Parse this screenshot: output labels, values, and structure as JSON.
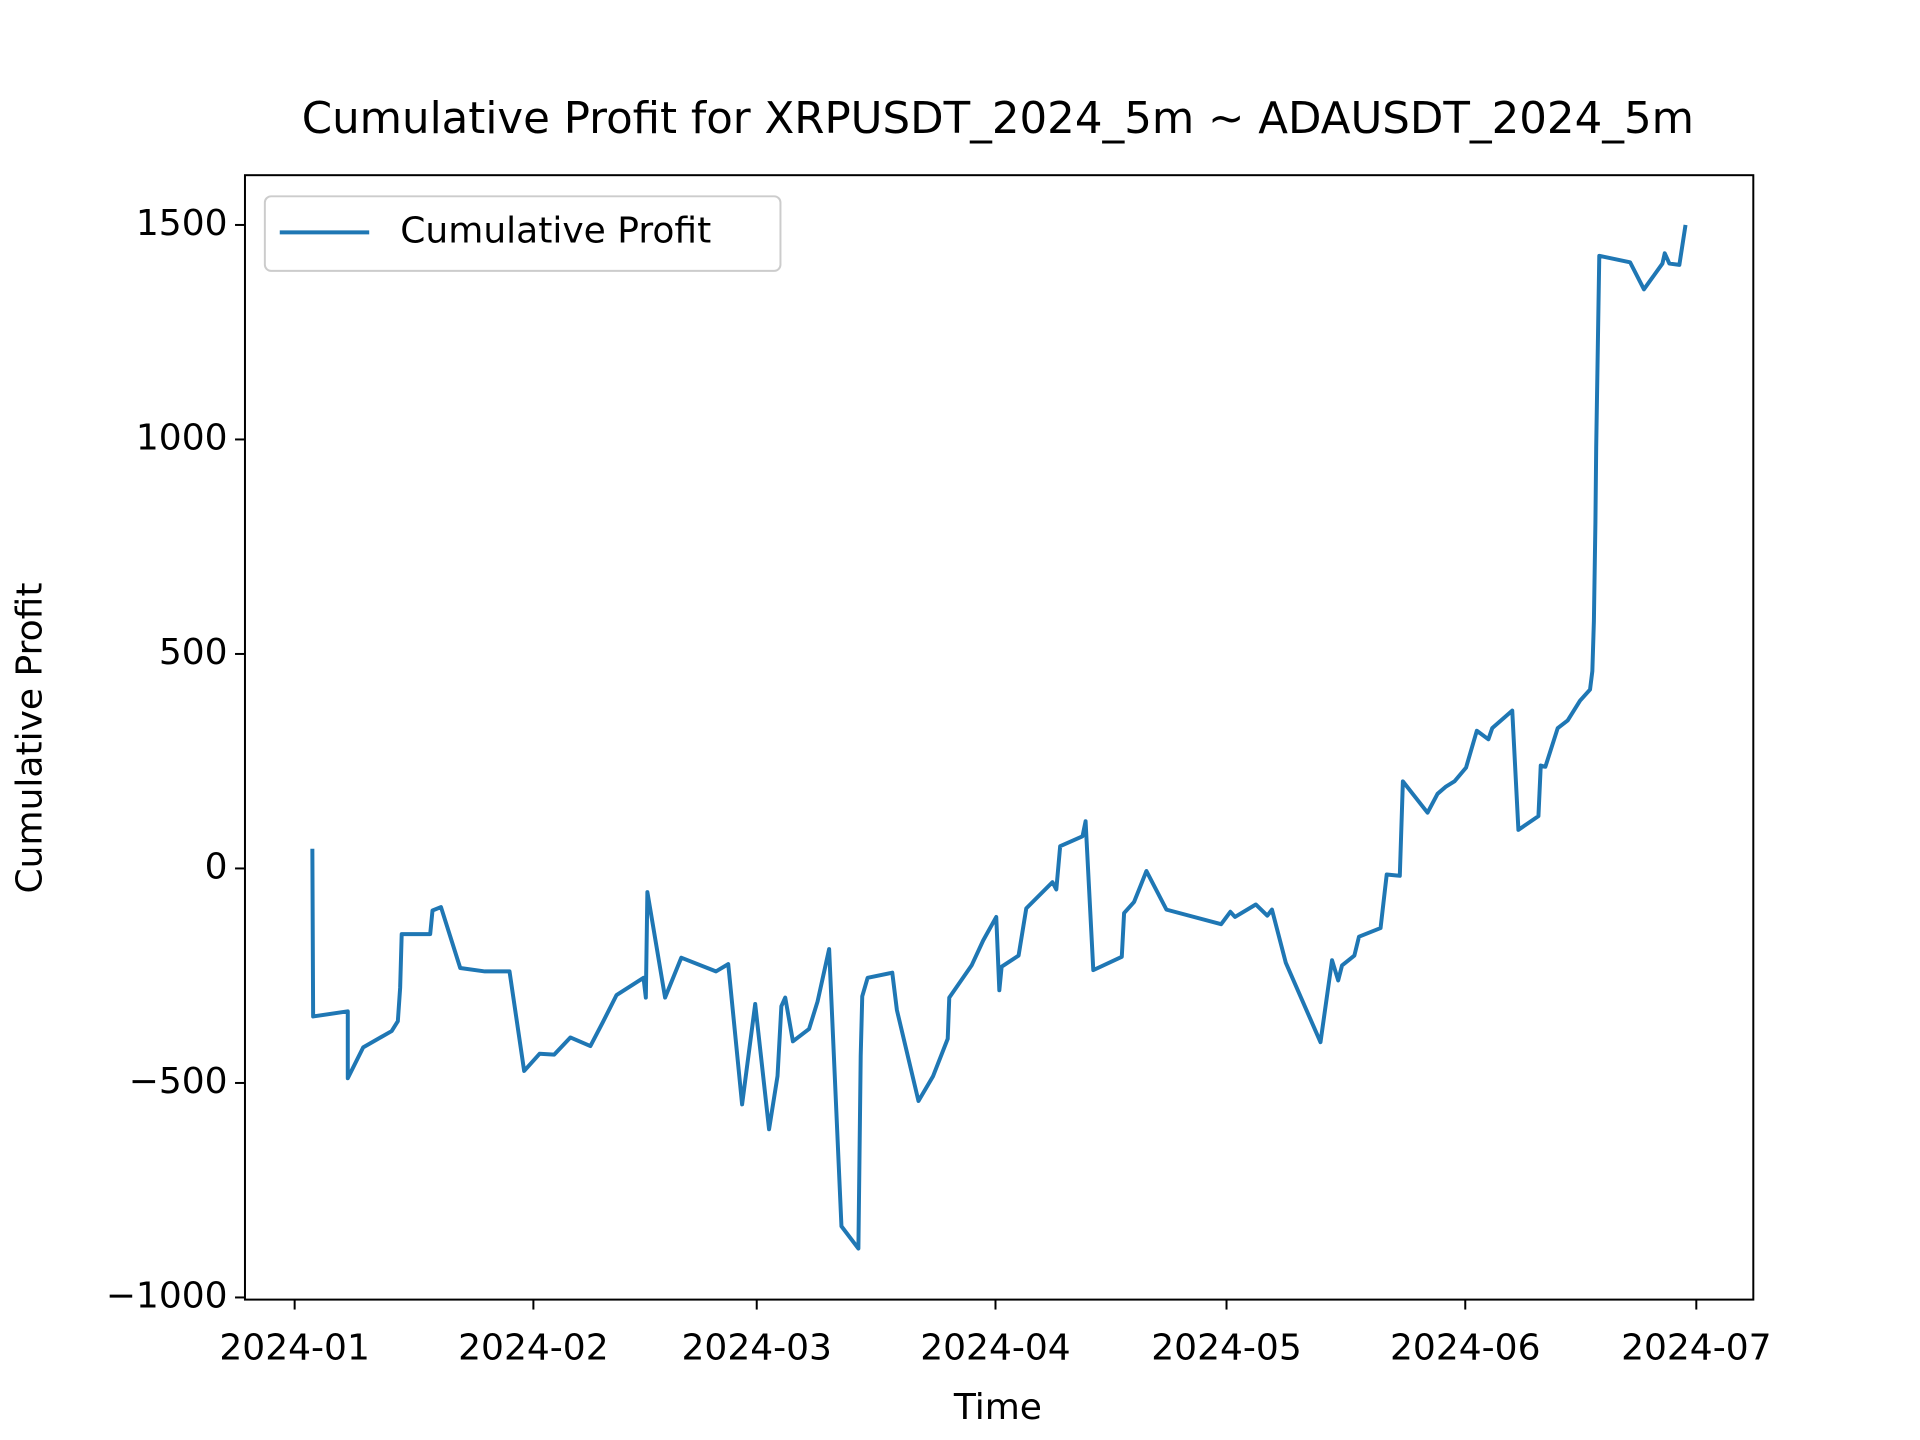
{
  "chart_data": {
    "type": "line",
    "title": "Cumulative Profit for XRPUSDT_2024_5m ~ ADAUSDT_2024_5m",
    "x_label": "Time",
    "y_label": "Cumulative Profit",
    "legend": "upper left",
    "xlim": [
      -6.45,
      189.4
    ],
    "ylim": [
      -1005,
      1616
    ],
    "xticks": [
      {
        "value": 0,
        "label": "2024-01"
      },
      {
        "value": 31,
        "label": "2024-02"
      },
      {
        "value": 60,
        "label": "2024-03"
      },
      {
        "value": 91,
        "label": "2024-04"
      },
      {
        "value": 121,
        "label": "2024-05"
      },
      {
        "value": 152,
        "label": "2024-06"
      },
      {
        "value": 182,
        "label": "2024-07"
      }
    ],
    "yticks": [
      {
        "value": -1000,
        "label": "−1000"
      },
      {
        "value": -500,
        "label": "−500"
      },
      0,
      500,
      1000,
      1500
    ],
    "x": [
      2.3,
      2.4,
      6.9,
      6.9,
      8.9,
      12.6,
      13.4,
      13.7,
      13.9,
      17.6,
      17.9,
      19.0,
      21.5,
      24.7,
      27.9,
      29.8,
      31.8,
      33.7,
      35.8,
      38.4,
      40.0,
      41.8,
      45.3,
      45.6,
      45.8,
      48.1,
      50.2,
      54.7,
      56.3,
      58.1,
      59.8,
      61.6,
      62.7,
      63.2,
      63.7,
      64.7,
      66.8,
      67.9,
      69.4,
      71.0,
      73.2,
      73.5,
      73.7,
      74.4,
      77.6,
      78.2,
      81.0,
      82.9,
      84.8,
      85.0,
      87.9,
      89.4,
      91.1,
      91.5,
      91.8,
      94.0,
      95.0,
      98.4,
      98.9,
      99.4,
      102.3,
      102.7,
      103.7,
      107.4,
      107.7,
      109.0,
      110.6,
      113.2,
      120.3,
      121.5,
      122.1,
      124.8,
      126.3,
      126.9,
      128.7,
      133.2,
      134.7,
      135.5,
      136.0,
      137.6,
      138.2,
      141.0,
      141.8,
      143.5,
      143.9,
      147.1,
      148.4,
      149.5,
      150.6,
      152.1,
      153.5,
      155.0,
      155.5,
      158.1,
      158.9,
      161.5,
      161.8,
      162.4,
      164.0,
      165.3,
      166.9,
      168.2,
      168.5,
      168.7,
      168.9,
      169.0,
      169.4,
      173.4,
      175.2,
      177.6,
      177.9,
      178.5,
      179.8,
      180.6
    ],
    "series": [
      {
        "name": "Cumulative Profit",
        "color": "#1f77b4",
        "values": [
          46,
          -345,
          -333,
          -489,
          -417,
          -379,
          -356,
          -278,
          -153,
          -153,
          -98,
          -90,
          -232,
          -240,
          -240,
          -472,
          -432,
          -434,
          -394,
          -414,
          -359,
          -295,
          -255,
          -301,
          -55,
          -301,
          -208,
          -240,
          -223,
          -550,
          -316,
          -608,
          -484,
          -321,
          -301,
          -403,
          -374,
          -310,
          -188,
          -834,
          -886,
          -437,
          -298,
          -255,
          -243,
          -330,
          -542,
          -484,
          -397,
          -301,
          -226,
          -168,
          -113,
          -284,
          -229,
          -203,
          -93,
          -32,
          -49,
          52,
          75,
          110,
          -237,
          -206,
          -104,
          -78,
          -6,
          -96,
          -130,
          -101,
          -113,
          -84,
          -110,
          -96,
          -220,
          -405,
          -214,
          -261,
          -226,
          -203,
          -159,
          -139,
          -14,
          -17,
          203,
          130,
          174,
          191,
          203,
          235,
          321,
          301,
          327,
          368,
          90,
          122,
          240,
          237,
          327,
          345,
          391,
          417,
          460,
          576,
          808,
          982,
          1428,
          1413,
          1350,
          1410,
          1434,
          1410,
          1407,
          1500
        ]
      }
    ]
  }
}
